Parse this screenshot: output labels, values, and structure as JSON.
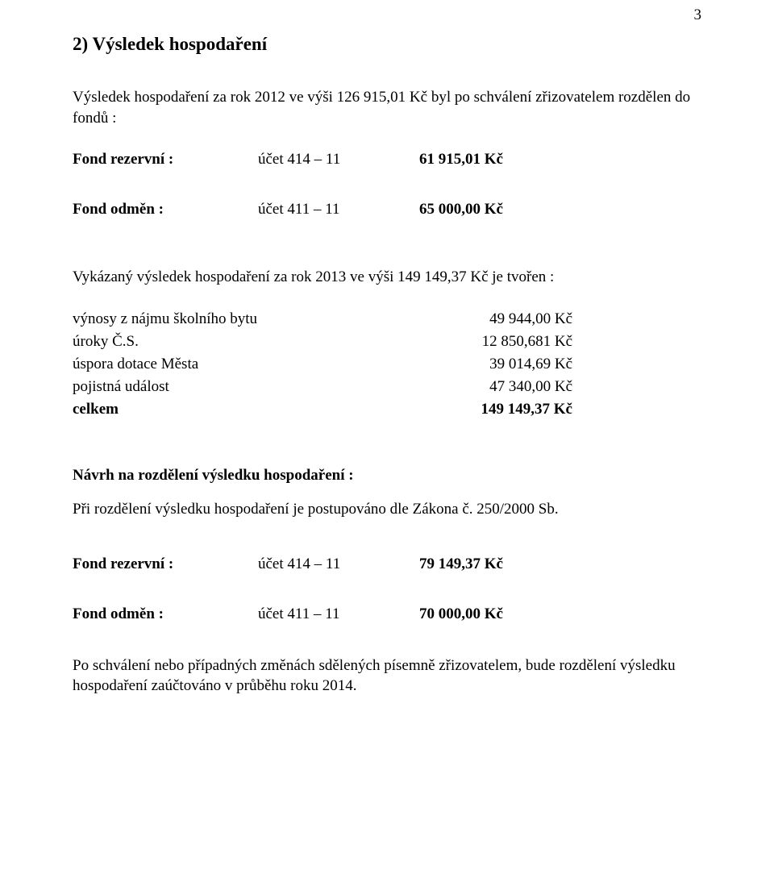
{
  "page_number": "3",
  "section_title": "2) Výsledek hospodaření",
  "intro_para_1": "Výsledek hospodaření za rok 2012 ve výši  126 915,01 Kč byl po schválení zřizovatelem rozdělen do fondů :",
  "fund_reserve_1": {
    "label": "Fond rezervní :",
    "account": "účet 414 – 11",
    "amount": "61 915,01 Kč"
  },
  "fund_reward_1": {
    "label": "Fond odměn :",
    "account": "účet 411 – 11",
    "amount": "65 000,00 Kč"
  },
  "reported_para": "Vykázaný výsledek hospodaření za rok 2013 ve výši  149 149,37 Kč je tvořen :",
  "table": {
    "rows": [
      {
        "label": "výnosy z nájmu školního bytu",
        "value": "49 944,00 Kč",
        "bold": false
      },
      {
        "label": "úroky Č.S.",
        "value": "12 850,681 Kč",
        "bold": false
      },
      {
        "label": "úspora dotace Města",
        "value": "39 014,69 Kč",
        "bold": false
      },
      {
        "label": "pojistná událost",
        "value": "47 340,00 Kč",
        "bold": false
      },
      {
        "label": "celkem",
        "value": "149 149,37 Kč",
        "bold": true
      }
    ]
  },
  "proposal_heading": "Návrh na rozdělení výsledku hospodaření :",
  "proposal_para": "Při rozdělení výsledku hospodaření je postupováno dle Zákona č. 250/2000 Sb.",
  "fund_reserve_2": {
    "label": "Fond rezervní :",
    "account": "účet 414 – 11",
    "amount": "79 149,37 Kč"
  },
  "fund_reward_2": {
    "label": "Fond odměn :",
    "account": "účet 411 – 11",
    "amount": "70 000,00 Kč"
  },
  "closing_para": "Po schválení nebo případných změnách sdělených písemně zřizovatelem, bude rozdělení výsledku hospodaření zaúčtováno v průběhu roku 2014."
}
